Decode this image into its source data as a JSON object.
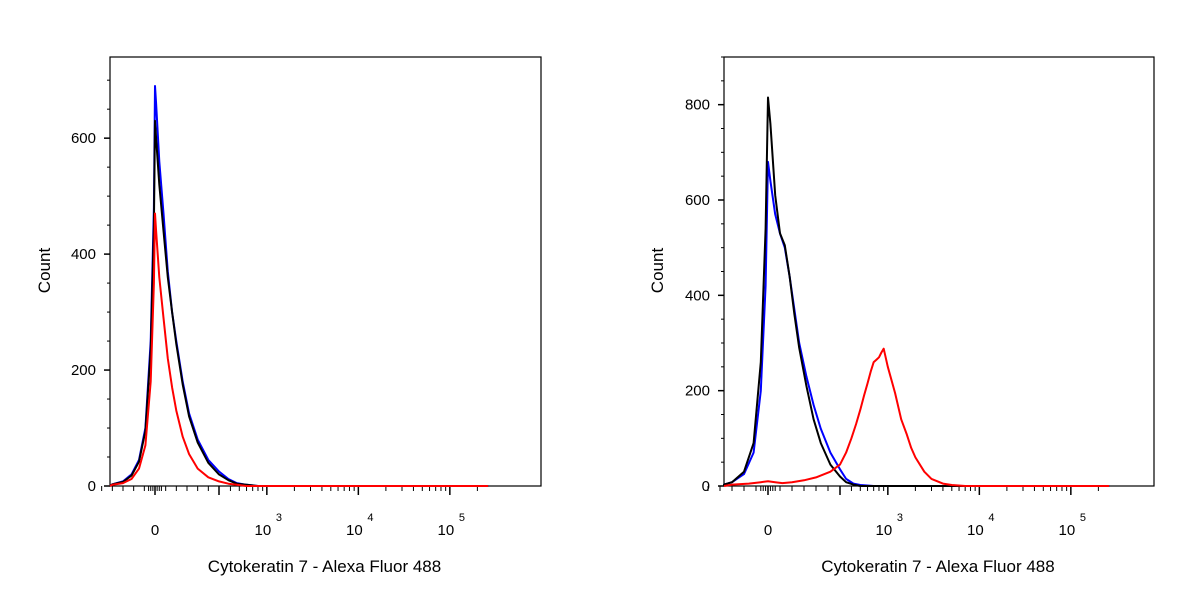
{
  "chart_data": [
    {
      "type": "line",
      "title": "",
      "xlabel": "Cytokeratin 7 - Alexa Fluor 488",
      "ylabel": "Count",
      "x_scale": "biexponential",
      "x_tick_labels": [
        {
          "base": "0",
          "exp": ""
        },
        {
          "base": "10",
          "exp": "3"
        },
        {
          "base": "10",
          "exp": "4"
        },
        {
          "base": "10",
          "exp": "5"
        }
      ],
      "y_ticks": [
        0,
        200,
        400,
        600
      ],
      "ylim": [
        0,
        740
      ],
      "grid": false,
      "series": [
        {
          "color": "#0000ff",
          "x": [
            -260,
            -200,
            -150,
            -110,
            -75,
            -45,
            -20,
            -5,
            0,
            5,
            20,
            40,
            60,
            80,
            100,
            130,
            160,
            200,
            250,
            300,
            380,
            470,
            600,
            800,
            1000,
            2000,
            5000,
            10000,
            100000,
            262143
          ],
          "y": [
            0,
            3,
            8,
            20,
            45,
            100,
            250,
            480,
            690,
            660,
            560,
            470,
            370,
            300,
            250,
            180,
            125,
            80,
            45,
            25,
            12,
            5,
            2,
            0,
            0,
            0,
            0,
            0,
            0,
            0
          ]
        },
        {
          "color": "#000000",
          "x": [
            -260,
            -200,
            -150,
            -110,
            -75,
            -45,
            -20,
            -5,
            0,
            5,
            20,
            40,
            60,
            80,
            100,
            130,
            160,
            200,
            250,
            300,
            380,
            470,
            600,
            800,
            1000,
            2000,
            5000,
            10000,
            100000,
            262143
          ],
          "y": [
            0,
            3,
            7,
            18,
            42,
            95,
            235,
            450,
            630,
            600,
            520,
            440,
            360,
            300,
            245,
            175,
            120,
            75,
            40,
            20,
            10,
            4,
            2,
            0,
            0,
            0,
            0,
            0,
            0,
            0
          ]
        },
        {
          "color": "#ff0000",
          "x": [
            -260,
            -200,
            -150,
            -110,
            -75,
            -45,
            -20,
            -5,
            0,
            5,
            20,
            40,
            60,
            80,
            100,
            130,
            160,
            200,
            250,
            300,
            380,
            470,
            600,
            800,
            1000,
            2000,
            5000,
            10000,
            100000,
            262143
          ],
          "y": [
            0,
            2,
            5,
            12,
            30,
            70,
            180,
            350,
            470,
            440,
            360,
            290,
            220,
            170,
            130,
            85,
            55,
            30,
            15,
            8,
            4,
            2,
            0,
            0,
            0,
            0,
            0,
            0,
            0,
            0
          ]
        }
      ]
    },
    {
      "type": "line",
      "title": "",
      "xlabel": "Cytokeratin 7 - Alexa Fluor 488",
      "ylabel": "Count",
      "x_scale": "biexponential",
      "x_tick_labels": [
        {
          "base": "0",
          "exp": ""
        },
        {
          "base": "10",
          "exp": "3"
        },
        {
          "base": "10",
          "exp": "4"
        },
        {
          "base": "10",
          "exp": "5"
        }
      ],
      "y_ticks": [
        0,
        200,
        400,
        600,
        800
      ],
      "ylim": [
        0,
        900
      ],
      "grid": false,
      "series": [
        {
          "color": "#0000ff",
          "x": [
            -260,
            -200,
            -150,
            -100,
            -60,
            -30,
            -10,
            0,
            10,
            30,
            50,
            70,
            90,
            110,
            130,
            160,
            190,
            220,
            260,
            300,
            350,
            420,
            500,
            700,
            1000,
            10000,
            100000,
            262143
          ],
          "y": [
            0,
            3,
            8,
            25,
            70,
            200,
            420,
            680,
            640,
            570,
            530,
            500,
            440,
            370,
            300,
            230,
            170,
            120,
            70,
            35,
            15,
            5,
            2,
            0,
            0,
            0,
            0,
            0
          ]
        },
        {
          "color": "#000000",
          "x": [
            -260,
            -200,
            -150,
            -100,
            -60,
            -30,
            -10,
            0,
            10,
            30,
            50,
            70,
            90,
            110,
            130,
            160,
            190,
            220,
            260,
            300,
            350,
            420,
            500,
            700,
            1000,
            10000,
            100000,
            262143
          ],
          "y": [
            0,
            3,
            8,
            30,
            90,
            260,
            540,
            815,
            760,
            610,
            530,
            505,
            440,
            360,
            290,
            210,
            140,
            90,
            45,
            20,
            8,
            3,
            0,
            0,
            0,
            0,
            0,
            0
          ]
        },
        {
          "color": "#ff0000",
          "x": [
            -260,
            -150,
            -80,
            -30,
            0,
            30,
            60,
            100,
            150,
            200,
            260,
            300,
            350,
            400,
            450,
            500,
            550,
            600,
            650,
            700,
            750,
            800,
            850,
            900,
            1000,
            1200,
            1400,
            1600,
            1800,
            2000,
            2500,
            3000,
            4000,
            5000,
            7000,
            10000,
            100000,
            262143
          ],
          "y": [
            0,
            3,
            5,
            8,
            10,
            8,
            6,
            8,
            12,
            18,
            30,
            45,
            70,
            100,
            130,
            160,
            190,
            215,
            240,
            260,
            265,
            270,
            280,
            288,
            250,
            195,
            140,
            110,
            80,
            60,
            30,
            15,
            5,
            2,
            0,
            0,
            0,
            0
          ]
        }
      ]
    }
  ]
}
